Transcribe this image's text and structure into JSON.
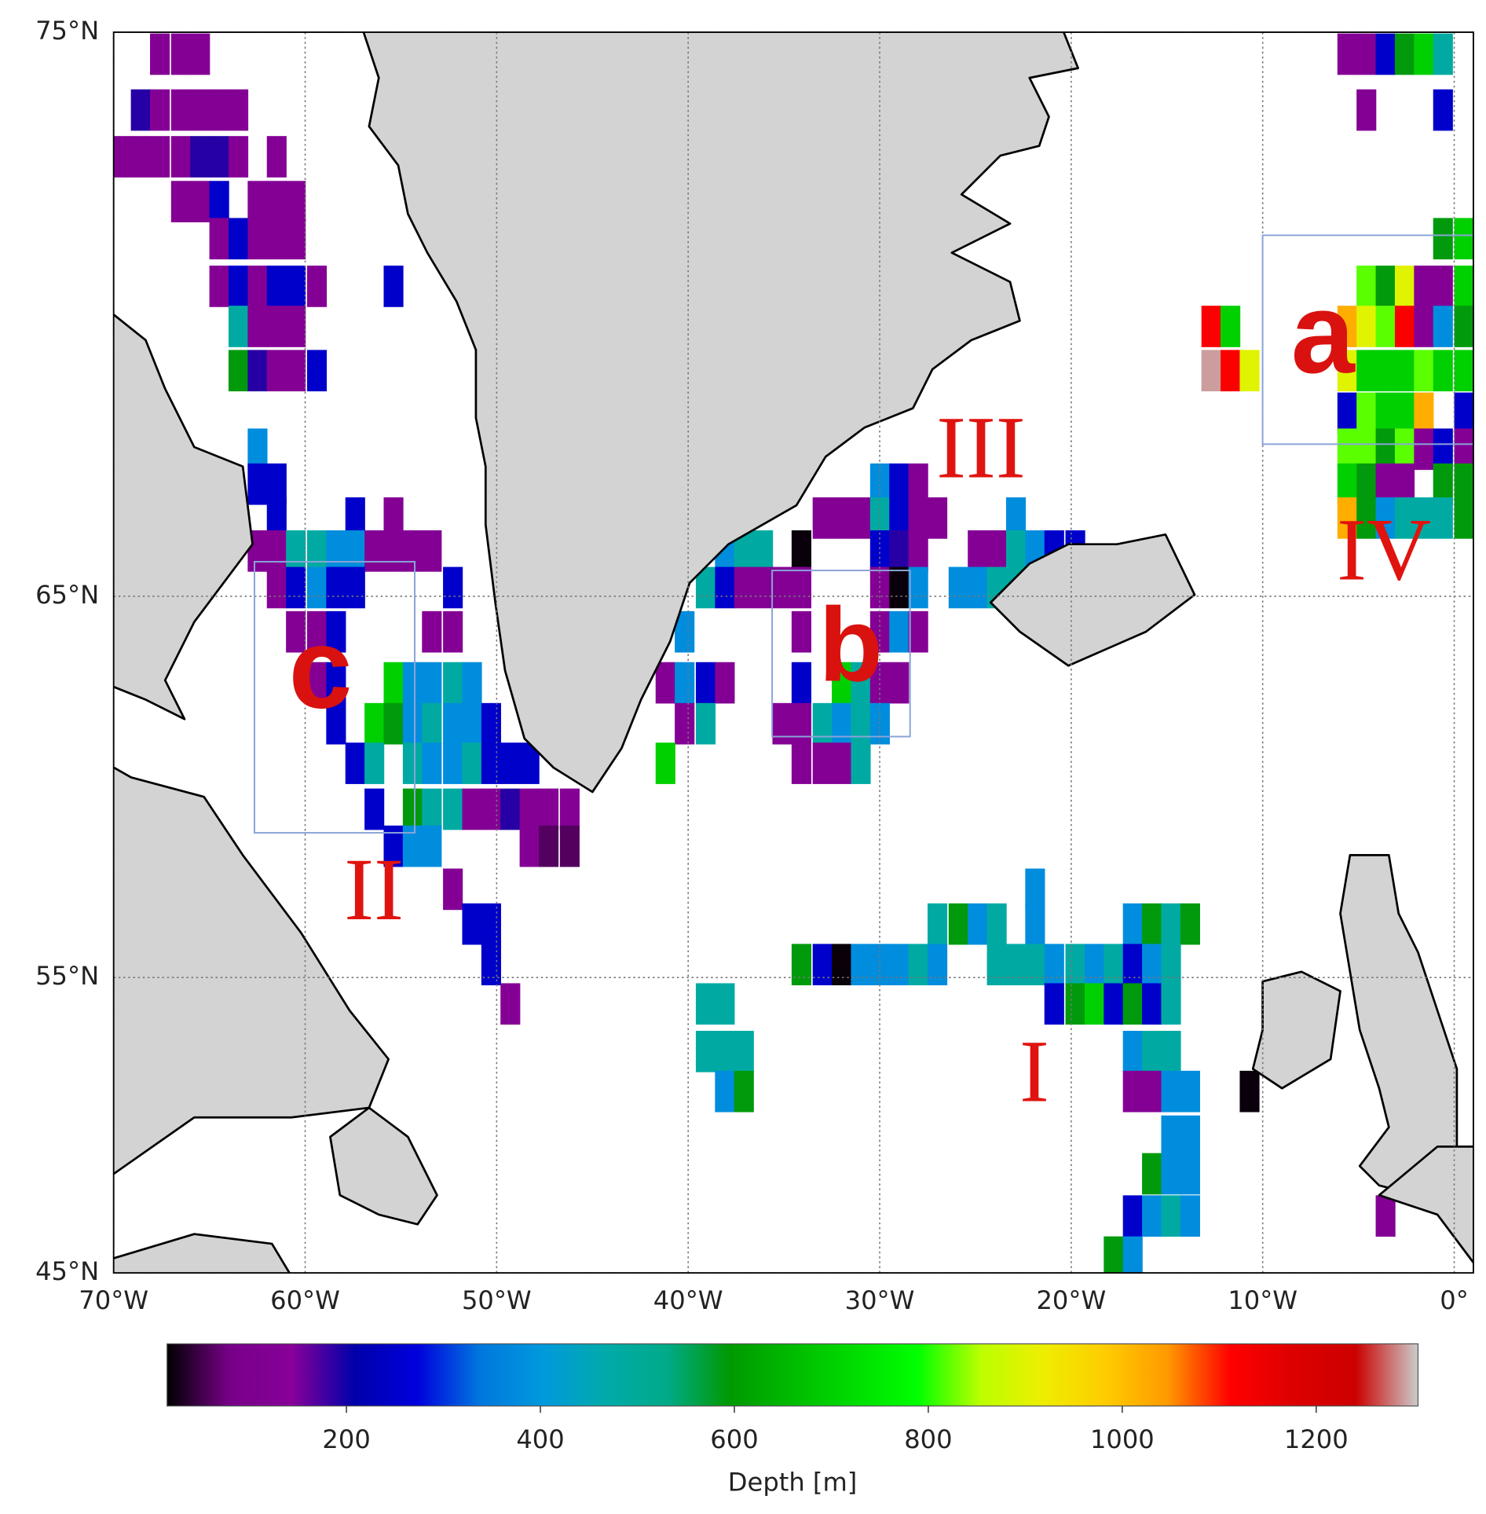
{
  "chart_data": {
    "type": "gridded-map",
    "xlim": [
      -70,
      1
    ],
    "ylim": [
      45,
      75
    ],
    "xticks": [
      {
        "value": -70,
        "label": "70°W"
      },
      {
        "value": -60,
        "label": "60°W"
      },
      {
        "value": -50,
        "label": "50°W"
      },
      {
        "value": -40,
        "label": "40°W"
      },
      {
        "value": -30,
        "label": "30°W"
      },
      {
        "value": -20,
        "label": "20°W"
      },
      {
        "value": -10,
        "label": "10°W"
      },
      {
        "value": 0,
        "label": "0°"
      }
    ],
    "yticks": [
      {
        "value": 45,
        "label": "45°N"
      },
      {
        "value": 55,
        "label": "55°N"
      },
      {
        "value": 65,
        "label": "65°N"
      },
      {
        "value": 75,
        "label": "75°N"
      }
    ],
    "grid": true,
    "projection": "mercator",
    "colorbar": {
      "label": "Depth [m]",
      "lim": [
        15,
        1305
      ],
      "ticks": [
        200,
        400,
        600,
        800,
        1000,
        1200
      ],
      "colormap": "nipy_spectral"
    },
    "annotations": [
      "a",
      "b",
      "c",
      "I",
      "II",
      "III",
      "IV"
    ],
    "cells": [
      {
        "lat": 74.7,
        "lon": [
          -67.6,
          -66.5,
          -65.5,
          -5.6,
          -4.6,
          -3.6,
          -2.6,
          -1.6,
          -0.6
        ],
        "depth": [
          130,
          130,
          130,
          130,
          130,
          250,
          590,
          700,
          480
        ]
      },
      {
        "lat": 73.9,
        "lon": [
          -68.6,
          -67.6,
          -66.5,
          -65.5,
          -64.5,
          -63.5,
          -4.6,
          -0.6
        ],
        "depth": [
          190,
          130,
          130,
          130,
          130,
          130,
          130,
          250
        ]
      },
      {
        "lat": 73.2,
        "lon": [
          -69.6,
          -68.6,
          -67.6,
          -66.5,
          -65.5,
          -64.5,
          -63.5,
          -61.5
        ],
        "depth": [
          130,
          130,
          130,
          130,
          190,
          190,
          130,
          130
        ]
      },
      {
        "lat": 72.5,
        "lon": [
          -66.5,
          -65.5,
          -64.5,
          -62.5,
          -61.5,
          -60.5
        ],
        "depth": [
          130,
          130,
          250,
          130,
          130,
          130
        ]
      },
      {
        "lat": 71.9,
        "lon": [
          -64.5,
          -63.5,
          -62.5,
          -61.5,
          -60.5,
          -0.6,
          0.5
        ],
        "depth": [
          130,
          250,
          130,
          130,
          130,
          590,
          700
        ]
      },
      {
        "lat": 71.1,
        "lon": [
          -64.5,
          -63.5,
          -62.5,
          -61.5,
          -60.5,
          -59.4,
          -55.4,
          -4.6,
          -3.6,
          -2.6,
          -1.6,
          -0.6,
          0.5
        ],
        "depth": [
          130,
          250,
          130,
          250,
          250,
          130,
          250,
          820,
          590,
          900,
          130,
          130,
          700
        ]
      },
      {
        "lat": 70.4,
        "lon": [
          -63.5,
          -62.5,
          -61.5,
          -60.5,
          -12.7,
          -11.7,
          -5.6,
          -4.6,
          -3.6,
          -2.6,
          -1.6,
          -0.6,
          0.5
        ],
        "depth": [
          480,
          130,
          130,
          130,
          1120,
          700,
          1020,
          900,
          820,
          1120,
          130,
          380,
          590
        ]
      },
      {
        "lat": 69.6,
        "lon": [
          -63.5,
          -62.5,
          -61.5,
          -60.5,
          -59.4,
          -12.7,
          -11.7,
          -10.7,
          -5.6,
          -4.6,
          -3.6,
          -2.6,
          -1.6,
          -0.6,
          0.5
        ],
        "depth": [
          590,
          190,
          130,
          130,
          250,
          1290,
          1120,
          900,
          900,
          700,
          700,
          700,
          820,
          700,
          700
        ]
      },
      {
        "lat": 68.8,
        "lon": [
          -5.6,
          -4.6,
          -3.6,
          -2.6,
          -1.6,
          0.5
        ],
        "depth": [
          250,
          820,
          700,
          700,
          1020,
          250
        ]
      },
      {
        "lat": 68.1,
        "lon": [
          -62.5,
          -5.6,
          -4.6,
          -3.6,
          -2.6,
          -1.6,
          -0.6,
          0.5
        ],
        "depth": [
          380,
          820,
          820,
          590,
          820,
          130,
          250,
          130
        ]
      },
      {
        "lat": 67.4,
        "lon": [
          -62.5,
          -61.5,
          -30.0,
          -29.0,
          -28.0,
          -5.6,
          -4.6,
          -3.6,
          -2.6,
          -0.6,
          0.5
        ],
        "depth": [
          250,
          250,
          380,
          250,
          130,
          700,
          590,
          130,
          130,
          590,
          590
        ]
      },
      {
        "lat": 66.7,
        "lon": [
          -61.5,
          -57.4,
          -55.4,
          -33.0,
          -32.0,
          -31.0,
          -30.0,
          -29.0,
          -28.0,
          -27.0,
          -22.9,
          -5.6,
          -4.6,
          -3.6,
          -2.6,
          -1.6,
          -0.6,
          0.5
        ],
        "depth": [
          250,
          250,
          130,
          130,
          130,
          130,
          480,
          250,
          130,
          130,
          380,
          1020,
          590,
          380,
          480,
          480,
          480,
          590
        ]
      },
      {
        "lat": 66.0,
        "lon": [
          -62.5,
          -61.5,
          -60.5,
          -59.4,
          -58.4,
          -57.4,
          -56.4,
          -55.4,
          -54.4,
          -53.4,
          -38.1,
          -37.1,
          -36.1,
          -34.1,
          -30.0,
          -29.0,
          -28.0,
          -24.9,
          -23.9,
          -22.9,
          -21.9,
          -20.9,
          -19.8
        ],
        "depth": [
          130,
          130,
          480,
          480,
          380,
          380,
          130,
          130,
          130,
          130,
          380,
          480,
          480,
          20,
          250,
          190,
          130,
          130,
          130,
          480,
          380,
          250,
          250
        ]
      },
      {
        "lat": 65.2,
        "lon": [
          -61.5,
          -60.5,
          -59.4,
          -58.4,
          -57.4,
          -52.3,
          -39.1,
          -38.1,
          -37.1,
          -36.1,
          -35.1,
          -34.1,
          -30.0,
          -29.0,
          -28.0,
          -25.9,
          -24.9,
          -23.9,
          -22.9
        ],
        "depth": [
          130,
          250,
          380,
          250,
          250,
          250,
          480,
          250,
          130,
          130,
          130,
          130,
          130,
          20,
          380,
          380,
          380,
          480,
          480
        ]
      },
      {
        "lat": 64.2,
        "lon": [
          -60.5,
          -59.4,
          -58.4,
          -53.4,
          -52.3,
          -40.2,
          -34.1,
          -30.0,
          -29.0,
          -28.0
        ],
        "depth": [
          130,
          130,
          250,
          130,
          130,
          380,
          130,
          130,
          380,
          130
        ]
      },
      {
        "lat": 63.0,
        "lon": [
          -59.4,
          -58.4,
          -55.4,
          -54.4,
          -53.4,
          -52.3,
          -51.3,
          -41.2,
          -40.2,
          -39.1,
          -38.1,
          -34.1,
          -32.0,
          -31.0,
          -30.0,
          -29.0
        ],
        "depth": [
          130,
          250,
          700,
          380,
          380,
          480,
          380,
          130,
          380,
          250,
          130,
          250,
          700,
          480,
          130,
          130
        ]
      },
      {
        "lat": 62.0,
        "lon": [
          -58.4,
          -56.4,
          -55.4,
          -54.4,
          -53.4,
          -52.3,
          -51.3,
          -50.3,
          -40.2,
          -39.1,
          -35.1,
          -34.1,
          -33.0,
          -32.0,
          -31.0,
          -30.0
        ],
        "depth": [
          250,
          700,
          590,
          380,
          480,
          380,
          380,
          250,
          130,
          480,
          130,
          130,
          480,
          380,
          480,
          380
        ]
      },
      {
        "lat": 61.0,
        "lon": [
          -57.4,
          -56.4,
          -54.4,
          -53.4,
          -52.3,
          -51.3,
          -50.3,
          -49.3,
          -48.3,
          -41.2,
          -34.1,
          -33.0,
          -32.0,
          -31.0
        ],
        "depth": [
          250,
          480,
          480,
          380,
          380,
          480,
          250,
          250,
          250,
          700,
          130,
          130,
          130,
          480
        ]
      },
      {
        "lat": 59.8,
        "lon": [
          -56.4,
          -54.4,
          -53.4,
          -52.3,
          -51.3,
          -50.3,
          -49.3,
          -48.3,
          -47.3,
          -46.2
        ],
        "depth": [
          250,
          590,
          480,
          480,
          130,
          130,
          190,
          130,
          130,
          130
        ]
      },
      {
        "lat": 58.8,
        "lon": [
          -55.4,
          -54.4,
          -53.4,
          -48.3,
          -47.3,
          -46.2
        ],
        "depth": [
          250,
          380,
          380,
          130,
          60,
          60
        ]
      },
      {
        "lat": 57.6,
        "lon": [
          -52.3,
          -21.9
        ],
        "depth": [
          130,
          380
        ]
      },
      {
        "lat": 56.6,
        "lon": [
          -51.3,
          -50.3,
          -27.0,
          -25.9,
          -24.9,
          -23.9,
          -21.9,
          -16.8,
          -15.8,
          -14.8,
          -13.8
        ],
        "depth": [
          250,
          250,
          480,
          590,
          380,
          480,
          380,
          380,
          590,
          480,
          590
        ]
      },
      {
        "lat": 55.4,
        "lon": [
          -50.3,
          -34.1,
          -33.0,
          -32.0,
          -31.0,
          -30.0,
          -29.0,
          -28.0,
          -27.0,
          -23.9,
          -22.9,
          -21.9,
          -20.9,
          -19.8,
          -18.8,
          -17.8,
          -16.8,
          -15.8,
          -14.8
        ],
        "depth": [
          250,
          590,
          250,
          20,
          380,
          380,
          380,
          480,
          380,
          480,
          480,
          480,
          380,
          480,
          380,
          480,
          250,
          380,
          480
        ]
      },
      {
        "lat": 54.2,
        "lon": [
          -49.3,
          -39.1,
          -38.1,
          -20.9,
          -19.8,
          -18.8,
          -17.8,
          -16.8,
          -15.8,
          -14.8
        ],
        "depth": [
          130,
          480,
          480,
          250,
          590,
          700,
          250,
          590,
          250,
          480
        ]
      },
      {
        "lat": 52.7,
        "lon": [
          -39.1,
          -38.1,
          -37.1,
          -16.8,
          -15.8,
          -14.8
        ],
        "depth": [
          480,
          480,
          480,
          380,
          480,
          480
        ]
      },
      {
        "lat": 51.4,
        "lon": [
          -38.1,
          -37.1,
          -16.8,
          -15.8,
          -14.8,
          -13.8,
          -10.7
        ],
        "depth": [
          380,
          590,
          130,
          130,
          380,
          380,
          20
        ]
      },
      {
        "lat": 49.9,
        "lon": [
          -14.8,
          -13.8
        ],
        "depth": [
          380,
          380
        ]
      },
      {
        "lat": 48.6,
        "lon": [
          -15.8,
          -14.8,
          -13.8
        ],
        "depth": [
          590,
          380,
          380
        ]
      },
      {
        "lat": 47.1,
        "lon": [
          -16.8,
          -15.8,
          -14.8,
          -13.8,
          -3.6
        ],
        "depth": [
          250,
          380,
          480,
          380,
          130
        ]
      },
      {
        "lat": 45.6,
        "lon": [
          -17.8,
          -16.8
        ],
        "depth": [
          590,
          380
        ]
      }
    ]
  }
}
